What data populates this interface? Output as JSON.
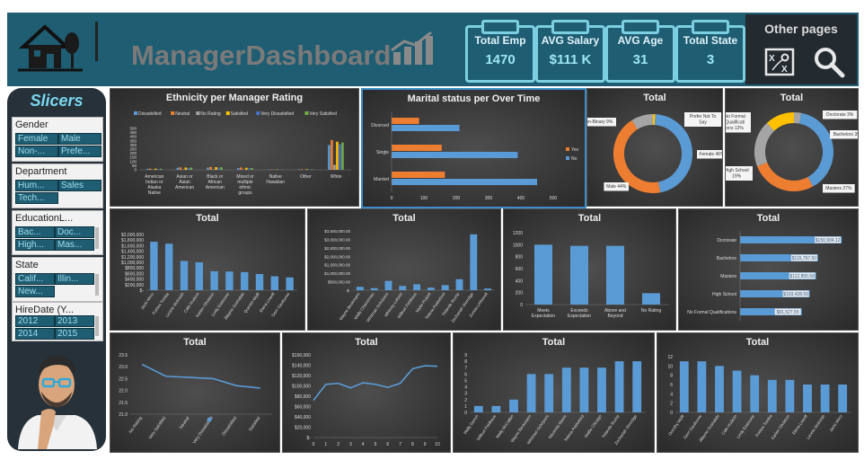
{
  "header": {
    "title": "ManagerDashboard",
    "kpis": [
      {
        "label": "Total Emp",
        "value": "1470"
      },
      {
        "label": "AVG Salary",
        "value": "$111 K"
      },
      {
        "label": "AVG Age",
        "value": "31"
      },
      {
        "label": "Total State",
        "value": "3"
      }
    ],
    "other_pages": "Other pages",
    "icons": [
      "house-icon",
      "bar-chart-icon",
      "strategy-board-icon",
      "search-icon"
    ]
  },
  "slicers": {
    "title": "Slicers",
    "groups": [
      {
        "name": "Gender",
        "items": [
          "Female",
          "Male",
          "Non-...",
          "Prefe..."
        ]
      },
      {
        "name": "Department",
        "items": [
          "Hum...",
          "Sales",
          "Tech..."
        ]
      },
      {
        "name": "EducationL...",
        "items": [
          "Bac...",
          "Doc...",
          "High...",
          "Mas..."
        ]
      },
      {
        "name": "State",
        "items": [
          "Calif...",
          "Illin...",
          "New..."
        ]
      },
      {
        "name": "HireDate (Y...",
        "items": [
          "2012",
          "2013",
          "2014",
          "2015"
        ]
      }
    ]
  },
  "colors": {
    "header_bg": "#1f5d73",
    "accent": "#7ccfe0",
    "blue": "#5b9bd5",
    "orange": "#ed7d31",
    "gray": "#a5a5a5",
    "yellow": "#ffc000",
    "dark_blue": "#4472c4",
    "green": "#70ad47"
  },
  "chart_data": [
    {
      "id": "ethnicity",
      "type": "bar",
      "title": "Ethnicity per Manager Rating",
      "categories": [
        "American Indian or Alaska Native",
        "Asian or Asian American",
        "Black or African American",
        "Mixed or multiple ethnic groups",
        "Native Hawaiian",
        "Other",
        "White"
      ],
      "series": [
        {
          "name": "Dissatisfied",
          "values": [
            12,
            25,
            28,
            20,
            3,
            6,
            300
          ]
        },
        {
          "name": "Neutral",
          "values": [
            15,
            30,
            35,
            28,
            4,
            8,
            360
          ]
        },
        {
          "name": "No Rating",
          "values": [
            3,
            5,
            6,
            4,
            1,
            1,
            60
          ]
        },
        {
          "name": "Satisfied",
          "values": [
            14,
            28,
            32,
            25,
            4,
            7,
            340
          ]
        },
        {
          "name": "Very Dissatisfied",
          "values": [
            10,
            22,
            26,
            18,
            3,
            5,
            310
          ]
        },
        {
          "name": "Very Satisfied",
          "values": [
            13,
            27,
            30,
            22,
            3,
            6,
            330
          ]
        }
      ],
      "yticks": [
        "0",
        "50",
        "100",
        "150",
        "200",
        "250",
        "300",
        "350",
        "400",
        "450",
        "500"
      ],
      "ylim": [
        0,
        500
      ],
      "legend": "top"
    },
    {
      "id": "marital",
      "type": "bar",
      "title": "Marital status per Over Time",
      "categories": [
        "Divorced",
        "Single",
        "Married"
      ],
      "series": [
        {
          "name": "Yes",
          "values": [
            85,
            155,
            165
          ]
        },
        {
          "name": "No",
          "values": [
            210,
            390,
            450
          ]
        }
      ],
      "xticks": [
        "0",
        "100",
        "200",
        "300",
        "400",
        "500"
      ],
      "xlim": [
        0,
        500
      ],
      "legend": "right"
    },
    {
      "id": "gender_donut",
      "type": "pie",
      "title": "Total",
      "slices": [
        {
          "label": "Prefer Not To Say",
          "value": 1
        },
        {
          "label": "Female",
          "value": 46
        },
        {
          "label": "Male",
          "value": 44
        },
        {
          "label": "Non-Binary",
          "value": 9
        }
      ],
      "labels": [
        "Prefer Not To Say",
        "Female 46%",
        "Male 44%",
        "Non-Binary 9%"
      ]
    },
    {
      "id": "education_donut",
      "type": "pie",
      "title": "Total",
      "slices": [
        {
          "label": "Doctorate",
          "value": 3
        },
        {
          "label": "Bachelors",
          "value": 39
        },
        {
          "label": "Masters",
          "value": 27
        },
        {
          "label": "High School",
          "value": 19
        },
        {
          "label": "No Formal Qualifications",
          "value": 12
        }
      ],
      "labels": [
        "Doctorate 3%",
        "Bachelors 39%",
        "Masters 27%",
        "High School 19%",
        "No Formal Qualificati ons 12%"
      ]
    },
    {
      "id": "salary_by_person",
      "type": "bar",
      "title": "Total",
      "categories": [
        "Jacki Mirro",
        "Forbes Tomba",
        "Leonie McKeish",
        "Cale Hudson",
        "Karlen Gholston",
        "Lindy Eastoone",
        "Jillayne Goshalski",
        "Quentin Wyllt",
        "Elena Leavill",
        "Gerri Gaulturow"
      ],
      "values": [
        1740000,
        1670000,
        1050000,
        1000000,
        680000,
        670000,
        650000,
        580000,
        500000,
        460000
      ],
      "yticks": [
        "$-",
        "$200,000",
        "$400,000",
        "$600,000",
        "$800,000",
        "$1,000,000",
        "$1,200,000",
        "$1,400,000",
        "$1,600,000",
        "$1,800,000",
        "$2,000,000"
      ],
      "ylim": [
        0,
        2000000
      ]
    },
    {
      "id": "salary_by_person2",
      "type": "bar",
      "title": "Total",
      "categories": [
        "Wayne Beckmann",
        "Wally Chanonnau",
        "Whitman Schrijvers",
        "Whitney Leforet",
        "Wilburt Feldhaus",
        "Wylie Pickett",
        "Yelena Paskeford",
        "Yolanda Stump",
        "Zechariah Storridge",
        "Zonda Lethiorell"
      ],
      "values": [
        200000,
        120000,
        550000,
        250000,
        350000,
        150000,
        300000,
        650000,
        3300000,
        100000
      ],
      "yticks": [
        "$-",
        "$500,000.00",
        "$1,000,000.00",
        "$1,500,000.00",
        "$2,000,000.00",
        "$2,500,000.00",
        "$3,000,000.00",
        "$3,500,000.00"
      ],
      "ylim": [
        0,
        3500000
      ]
    },
    {
      "id": "performance",
      "type": "bar",
      "title": "Total",
      "categories": [
        "Meets Expectation",
        "Exceeds Expectation",
        "Above and Beyond",
        "No Rating"
      ],
      "values": [
        1000,
        980,
        980,
        190
      ],
      "yticks": [
        "0",
        "200",
        "400",
        "600",
        "800",
        "1000",
        "1200"
      ],
      "ylim": [
        0,
        1200
      ]
    },
    {
      "id": "education_salary",
      "type": "bar",
      "title": "Total",
      "categories": [
        "Doctorate",
        "Bachelors",
        "Masters",
        "High School",
        "No Formal Qualifications"
      ],
      "values": [
        150904.12,
        115797.5,
        112855.58,
        103428.59,
        91527.55
      ],
      "data_labels": [
        "$150,904.12",
        "$115,797.50",
        "$112,855.58",
        "$103,428.59",
        "$91,527.55"
      ]
    },
    {
      "id": "age_by_rating",
      "type": "line",
      "title": "Total",
      "categories": [
        "No Rating",
        "Very Satisfied",
        "Neutral",
        "Very Dissatisfied",
        "Dissatisfied",
        "Satisfied"
      ],
      "values": [
        23.1,
        22.6,
        22.55,
        22.5,
        22.2,
        22.1
      ],
      "yticks": [
        "21.0",
        "21.5",
        "22.0",
        "22.5",
        "23.0",
        "23.5"
      ],
      "ylim": [
        21.0,
        23.5
      ]
    },
    {
      "id": "salary_line",
      "type": "line",
      "title": "Total",
      "x": [
        0,
        1,
        2,
        3,
        4,
        5,
        6,
        7,
        8,
        9,
        10
      ],
      "values": [
        72000,
        103000,
        105000,
        96000,
        106000,
        103000,
        97000,
        105000,
        133000,
        139000,
        138000
      ],
      "yticks": [
        "$-",
        "$20,000",
        "$40,000",
        "$60,000",
        "$80,000",
        "$100,000",
        "$120,000",
        "$140,000",
        "$160,000"
      ],
      "xticks": [
        "0",
        "1",
        "2",
        "3",
        "4",
        "5",
        "6",
        "7",
        "8",
        "9",
        "10"
      ],
      "ylim": [
        0,
        160000
      ]
    },
    {
      "id": "counts_a",
      "type": "bar",
      "title": "Total",
      "categories": [
        "Wally Dench",
        "Wilburt Feldhaus",
        "Wally McCallan",
        "Wayne Beckmann",
        "Whitman Schrijvers",
        "Wyomda Myers",
        "Yelena Paskeford",
        "Wallie Chicago",
        "Yolanda Stump",
        "Zechariah Storridge"
      ],
      "values": [
        1,
        1,
        2,
        6,
        6,
        7,
        7,
        7,
        8,
        8
      ],
      "yticks": [
        "0",
        "1",
        "2",
        "3",
        "4",
        "5",
        "6",
        "7",
        "8",
        "9"
      ],
      "ylim": [
        0,
        9
      ]
    },
    {
      "id": "counts_b",
      "type": "bar",
      "title": "Total",
      "categories": [
        "Dorothy Wyllt",
        "Gerri Gaulturow",
        "Jillayne Goshalski",
        "Cale Hudson",
        "Lindy Eastoone",
        "Forbes Tomba",
        "Karlen Gholston",
        "Elena Leavill",
        "Leonie McKeish",
        "Jacki Mirro"
      ],
      "values": [
        11,
        11,
        10,
        9,
        8,
        7,
        7,
        6,
        6,
        6
      ],
      "yticks": [
        "0",
        "2",
        "4",
        "6",
        "8",
        "10",
        "12"
      ],
      "ylim": [
        0,
        12
      ]
    }
  ]
}
